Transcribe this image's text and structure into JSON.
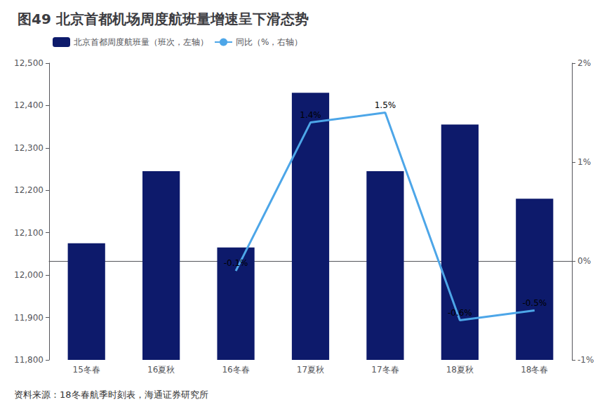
{
  "chart_data": {
    "type": "bar",
    "title": "图49 北京首都机场周度航班量增速呈下滑态势",
    "annotations": [
      "资料来源：18冬春航季时刻表，海通证券研究所"
    ],
    "categories": [
      "15冬春",
      "16夏秋",
      "16冬春",
      "17夏秋",
      "17冬春",
      "18夏秋",
      "18冬春"
    ],
    "series": [
      {
        "name": "北京首都周度航班量（班次，左轴）",
        "type": "bar",
        "color": "#0d1a6b",
        "values": [
          12075,
          12245,
          12065,
          12430,
          12245,
          12355,
          12180
        ]
      },
      {
        "name": "同比（%，右轴）",
        "type": "line",
        "color": "#4da6e8",
        "axis": "y2",
        "values": [
          null,
          null,
          -0.1,
          1.4,
          1.5,
          -0.6,
          -0.5
        ],
        "value_labels": [
          null,
          null,
          "-0.1%",
          "1.4%",
          "1.5%",
          "-0.6%",
          "-0.5%"
        ],
        "data_labels": true
      }
    ],
    "ylim": [
      11800,
      12500
    ],
    "yticks": [
      {
        "value": 11800,
        "label": "11,800"
      },
      {
        "value": 11900,
        "label": "11,900"
      },
      {
        "value": 12000,
        "label": "12,000"
      },
      {
        "value": 12100,
        "label": "12,100"
      },
      {
        "value": 12200,
        "label": "12,200"
      },
      {
        "value": 12300,
        "label": "12,300"
      },
      {
        "value": 12400,
        "label": "12,400"
      },
      {
        "value": 12500,
        "label": "12,500"
      }
    ],
    "y2lim": [
      -1,
      2
    ],
    "y2ticks": [
      {
        "value": -1,
        "label": "-1%"
      },
      {
        "value": 0,
        "label": "0%"
      },
      {
        "value": 1,
        "label": "1%"
      },
      {
        "value": 2,
        "label": "2%"
      }
    ],
    "legend": "upper left",
    "grid": false
  }
}
